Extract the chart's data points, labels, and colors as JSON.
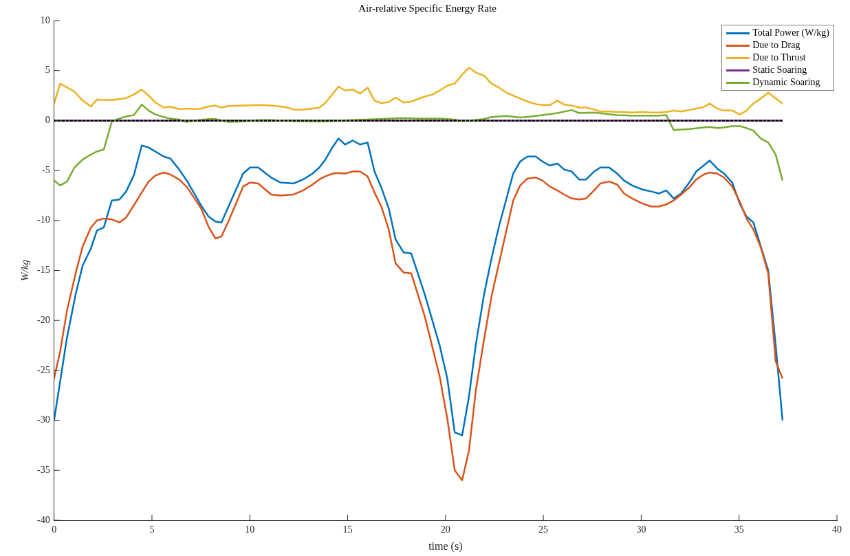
{
  "chart_data": {
    "type": "line",
    "title": "Air-relative Specific Energy Rate",
    "xlabel": "time (s)",
    "ylabel": "W/kg",
    "xlim": [
      0,
      40
    ],
    "xticks": [
      0,
      5,
      10,
      15,
      20,
      25,
      30,
      35,
      40
    ],
    "ylim": [
      -40,
      10
    ],
    "yticks": [
      -40,
      -35,
      -30,
      -25,
      -20,
      -15,
      -10,
      -5,
      0,
      5,
      10
    ],
    "grid": false,
    "legend": "top right",
    "marker": "none",
    "series": [
      {
        "name": "Total Power (W/kg)",
        "color": "#0072bd",
        "x": [
          0,
          0.66,
          1.11,
          1.46,
          1.88,
          2.19,
          2.54,
          2.95,
          3.34,
          3.68,
          4.07,
          4.48,
          4.83,
          5.6,
          5.94,
          6.39,
          6.81,
          7.51,
          7.89,
          8.24,
          8.55,
          9.66,
          10.01,
          10.43,
          11.09,
          11.57,
          12.23,
          12.72,
          13.21,
          13.55,
          13.83,
          14.25,
          14.53,
          14.87,
          15.26,
          15.64,
          16.02,
          16.37,
          16.72,
          17.1,
          17.45,
          17.86,
          18.25,
          18.94,
          19.7,
          20.09,
          20.47,
          20.85,
          21.2,
          21.55,
          21.96,
          22.35,
          22.73,
          23.46,
          23.81,
          24.19,
          24.61,
          24.95,
          25.33,
          25.72,
          26.06,
          26.45,
          26.83,
          27.18,
          27.59,
          27.91,
          28.36,
          28.77,
          29.12,
          29.54,
          30.06,
          30.51,
          30.9,
          31.28,
          31.66,
          32.04,
          32.46,
          32.81,
          33.19,
          33.5,
          33.88,
          34.23,
          34.65,
          35.03,
          35.38,
          35.73,
          36.11,
          36.49,
          36.87,
          37.22
        ],
        "values": [
          -30,
          -21.7,
          -17.3,
          -14.5,
          -12.8,
          -11,
          -10.7,
          -8,
          -7.9,
          -7.1,
          -5.5,
          -2.5,
          -2.7,
          -3.6,
          -3.8,
          -4.9,
          -6.1,
          -8.5,
          -9.6,
          -10.1,
          -10.2,
          -5.3,
          -4.7,
          -4.7,
          -5.7,
          -6.2,
          -6.3,
          -5.9,
          -5.3,
          -4.7,
          -4,
          -2.6,
          -1.8,
          -2.4,
          -2,
          -2.4,
          -2.2,
          -5.1,
          -6.7,
          -8.8,
          -11.9,
          -13.2,
          -13.3,
          -17.4,
          -22.5,
          -25.8,
          -31.2,
          -31.5,
          -27.6,
          -22.4,
          -17.5,
          -13.8,
          -10.6,
          -5.3,
          -4.1,
          -3.6,
          -3.6,
          -4.1,
          -4.5,
          -4.3,
          -4.9,
          -5.1,
          -5.9,
          -5.9,
          -5.1,
          -4.7,
          -4.7,
          -5.3,
          -6,
          -6.5,
          -6.9,
          -7.1,
          -7.3,
          -7,
          -7.8,
          -7.3,
          -6.2,
          -5.1,
          -4.5,
          -4,
          -4.8,
          -5.3,
          -6.2,
          -8.3,
          -9.6,
          -10.2,
          -12.6,
          -15,
          -22.5,
          -30
        ]
      },
      {
        "name": "Due to Drag",
        "color": "#d95319",
        "x": [
          0,
          0.31,
          0.66,
          1.11,
          1.46,
          1.88,
          2.19,
          2.54,
          2.95,
          3.34,
          3.68,
          4.07,
          4.48,
          4.83,
          5.18,
          5.6,
          5.94,
          6.39,
          6.81,
          7.51,
          7.89,
          8.24,
          8.55,
          8.93,
          9.66,
          10.01,
          10.43,
          11.09,
          11.57,
          12.23,
          12.72,
          13.21,
          13.55,
          13.83,
          14.25,
          14.53,
          14.87,
          15.26,
          15.64,
          16.02,
          16.37,
          16.72,
          17.1,
          17.45,
          17.86,
          18.25,
          18.94,
          19.7,
          20.09,
          20.47,
          20.85,
          21.2,
          21.55,
          21.96,
          22.35,
          22.73,
          23.46,
          23.81,
          24.19,
          24.61,
          24.95,
          25.33,
          25.72,
          26.06,
          26.45,
          26.83,
          27.18,
          27.59,
          27.91,
          28.36,
          28.77,
          29.12,
          29.54,
          30.06,
          30.51,
          30.9,
          31.28,
          31.66,
          32.04,
          32.46,
          32.81,
          33.19,
          33.5,
          33.88,
          34.23,
          34.65,
          35.03,
          35.38,
          35.73,
          36.11,
          36.49,
          36.87,
          37.22
        ],
        "values": [
          -25.8,
          -23.1,
          -19,
          -15.2,
          -12.6,
          -10.7,
          -10,
          -9.8,
          -9.9,
          -10.2,
          -9.7,
          -8.5,
          -7.2,
          -6.1,
          -5.5,
          -5.2,
          -5.4,
          -5.9,
          -6.7,
          -8.8,
          -10.6,
          -11.8,
          -11.6,
          -10,
          -6.6,
          -6.2,
          -6.3,
          -7.4,
          -7.5,
          -7.4,
          -7,
          -6.4,
          -5.9,
          -5.6,
          -5.3,
          -5.25,
          -5.3,
          -5.1,
          -5.1,
          -5.6,
          -7.2,
          -8.6,
          -10.9,
          -14.3,
          -15.2,
          -15.3,
          -19.6,
          -25.6,
          -29.8,
          -35,
          -36,
          -33,
          -27,
          -22,
          -17.6,
          -14.3,
          -8,
          -6.5,
          -5.8,
          -5.7,
          -6,
          -6.6,
          -7,
          -7.4,
          -7.8,
          -7.9,
          -7.8,
          -7,
          -6.3,
          -6.1,
          -6.4,
          -7.3,
          -7.8,
          -8.3,
          -8.6,
          -8.6,
          -8.4,
          -8,
          -7.4,
          -6.7,
          -5.9,
          -5.4,
          -5.2,
          -5.3,
          -5.7,
          -6.6,
          -8.1,
          -9.8,
          -10.9,
          -12.7,
          -15.3,
          -24.1,
          -25.8
        ]
      },
      {
        "name": "Due to Thrust",
        "color": "#edb120",
        "x": [
          0,
          0.31,
          1.04,
          1.46,
          1.88,
          2.19,
          2.54,
          2.95,
          3.34,
          3.68,
          4.07,
          4.48,
          4.83,
          5.18,
          5.6,
          5.94,
          6.39,
          6.81,
          7.16,
          7.51,
          7.89,
          8.24,
          8.55,
          8.93,
          9.66,
          10.43,
          11.09,
          11.57,
          11.92,
          12.23,
          12.72,
          13.21,
          13.55,
          13.83,
          14.25,
          14.53,
          14.87,
          15.26,
          15.64,
          16.02,
          16.37,
          16.72,
          17.1,
          17.45,
          17.86,
          18.25,
          18.94,
          19.32,
          19.7,
          20.09,
          20.47,
          20.85,
          21.2,
          21.55,
          21.96,
          22.35,
          22.73,
          23.11,
          23.46,
          23.81,
          24.19,
          24.61,
          24.95,
          25.33,
          25.72,
          26.06,
          26.45,
          26.83,
          27.18,
          27.59,
          27.91,
          28.36,
          28.77,
          29.12,
          29.54,
          30.06,
          30.51,
          30.9,
          31.28,
          31.66,
          32.04,
          32.46,
          32.81,
          33.19,
          33.5,
          33.88,
          34.23,
          34.65,
          35.03,
          35.38,
          35.73,
          36.11,
          36.49,
          37.22
        ],
        "values": [
          1.7,
          3.7,
          2.9,
          2,
          1.4,
          2.1,
          2.05,
          2.05,
          2.15,
          2.25,
          2.6,
          3.1,
          2.5,
          1.8,
          1.3,
          1.4,
          1.15,
          1.2,
          1.15,
          1.2,
          1.4,
          1.5,
          1.3,
          1.45,
          1.5,
          1.55,
          1.5,
          1.4,
          1.3,
          1.1,
          1.1,
          1.2,
          1.3,
          1.7,
          2.7,
          3.4,
          3,
          3.1,
          2.7,
          3.3,
          2,
          1.75,
          1.85,
          2.3,
          1.8,
          1.9,
          2.4,
          2.6,
          3,
          3.5,
          3.7,
          4.6,
          5.3,
          4.8,
          4.5,
          3.7,
          3.3,
          2.8,
          2.5,
          2.2,
          1.9,
          1.65,
          1.55,
          1.55,
          2,
          1.6,
          1.5,
          1.3,
          1.3,
          1.1,
          0.9,
          0.9,
          0.85,
          0.85,
          0.8,
          0.85,
          0.8,
          0.8,
          0.85,
          1,
          0.9,
          1.05,
          1.2,
          1.35,
          1.7,
          1.2,
          1,
          1,
          0.6,
          1,
          1.7,
          2.2,
          2.8,
          1.7
        ]
      },
      {
        "name": "Static Soaring",
        "color": "#7e2f8e",
        "x": [
          0,
          37.22
        ],
        "values": [
          0,
          0
        ]
      },
      {
        "name": "Dynamic Soaring",
        "color": "#77ac30",
        "x": [
          0,
          0.31,
          0.66,
          1.04,
          1.46,
          1.88,
          2.19,
          2.54,
          2.95,
          3.34,
          3.68,
          4.07,
          4.48,
          4.83,
          5.18,
          5.6,
          5.94,
          6.39,
          6.74,
          7.16,
          7.89,
          8.24,
          8.93,
          9.66,
          10.43,
          11.09,
          12.23,
          13.21,
          13.83,
          14.53,
          15.26,
          16.02,
          17.1,
          17.86,
          18.56,
          19.7,
          20.47,
          20.85,
          21.2,
          21.96,
          22.35,
          23.11,
          23.81,
          24.61,
          25.72,
          26.45,
          26.83,
          27.59,
          28.77,
          29.54,
          30.9,
          31.28,
          31.66,
          32.46,
          33.15,
          33.5,
          33.88,
          34.23,
          34.65,
          35.03,
          35.38,
          35.73,
          36.11,
          36.49,
          36.87,
          37.22
        ],
        "values": [
          -6,
          -6.5,
          -6.1,
          -4.7,
          -3.9,
          -3.4,
          -3.1,
          -2.9,
          -0.1,
          0.2,
          0.4,
          0.55,
          1.6,
          1,
          0.6,
          0.35,
          0.2,
          0.1,
          -0.15,
          0,
          0.15,
          0.15,
          -0.15,
          -0.1,
          0.05,
          0.05,
          -0.05,
          -0.1,
          -0.1,
          0,
          0.05,
          0.1,
          0.2,
          0.25,
          0.2,
          0.2,
          0.1,
          -0.05,
          0,
          0.15,
          0.35,
          0.45,
          0.3,
          0.45,
          0.75,
          1.05,
          0.75,
          0.8,
          0.55,
          0.5,
          0.5,
          0.55,
          -0.95,
          -0.85,
          -0.7,
          -0.65,
          -0.75,
          -0.7,
          -0.55,
          -0.55,
          -0.75,
          -1,
          -1.8,
          -2.2,
          -3.4,
          -6
        ]
      },
      {
        "color": "#000000",
        "line_style": "dashed",
        "x": [
          37.22,
          0
        ],
        "values": [
          0,
          0
        ]
      }
    ]
  }
}
